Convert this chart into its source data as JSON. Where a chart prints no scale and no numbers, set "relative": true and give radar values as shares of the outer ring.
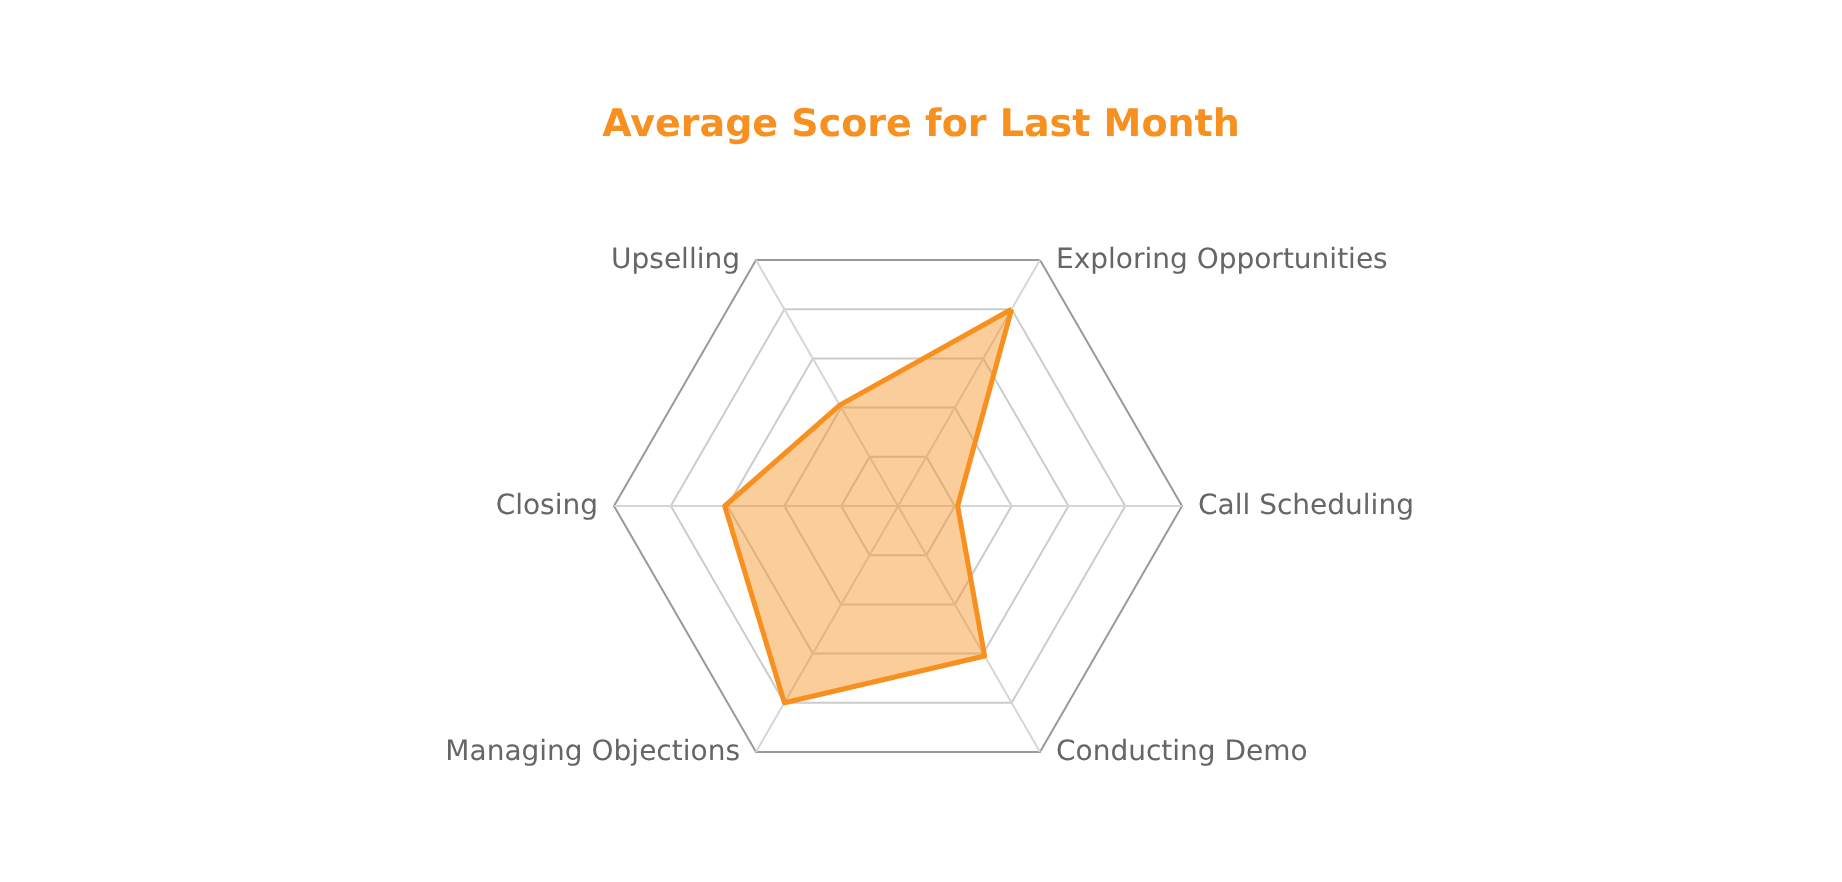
{
  "chart_data": {
    "type": "radar",
    "title": "Average Score for Last Month",
    "categories": [
      "Exploring Opportunities",
      "Call Scheduling",
      "Conducting Demo",
      "Managing Objections",
      "Closing",
      "Upselling"
    ],
    "series": [
      {
        "color": "#f7901e",
        "values": [
          0.8,
          0.21,
          0.61,
          0.8,
          0.61,
          0.41
        ]
      }
    ],
    "relative": true,
    "grid": true
  }
}
